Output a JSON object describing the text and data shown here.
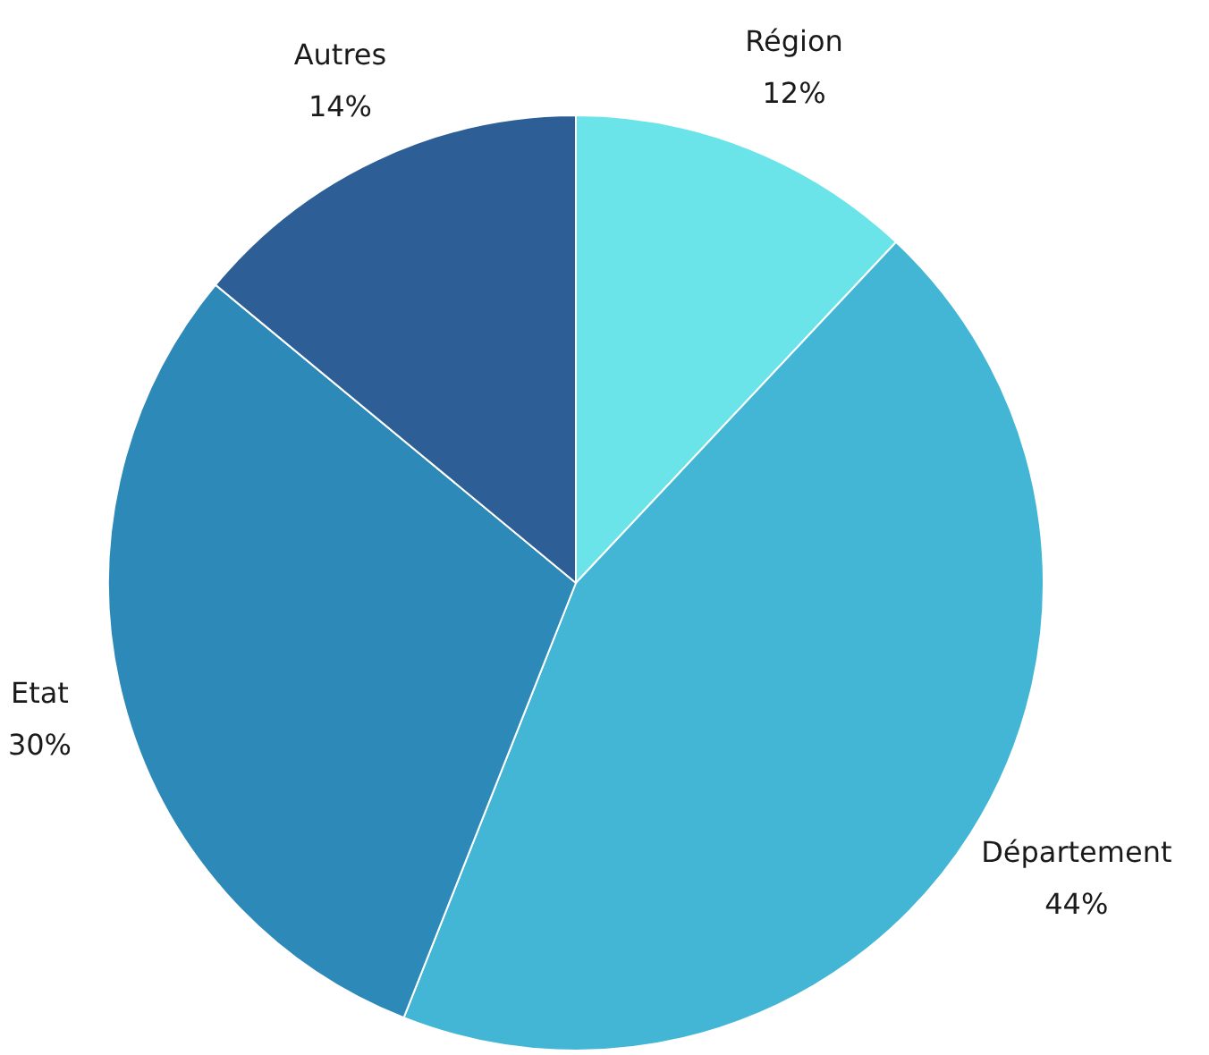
{
  "chart_data": {
    "type": "pie",
    "categories": [
      "Région",
      "Département",
      "Etat",
      "Autres"
    ],
    "values": [
      12,
      44,
      30,
      14
    ],
    "colors": [
      "#6ae4e8",
      "#43b6d6",
      "#2c89b8",
      "#2d5f96"
    ],
    "value_labels": [
      "12%",
      "44%",
      "30%",
      "14%"
    ],
    "legend": false
  }
}
